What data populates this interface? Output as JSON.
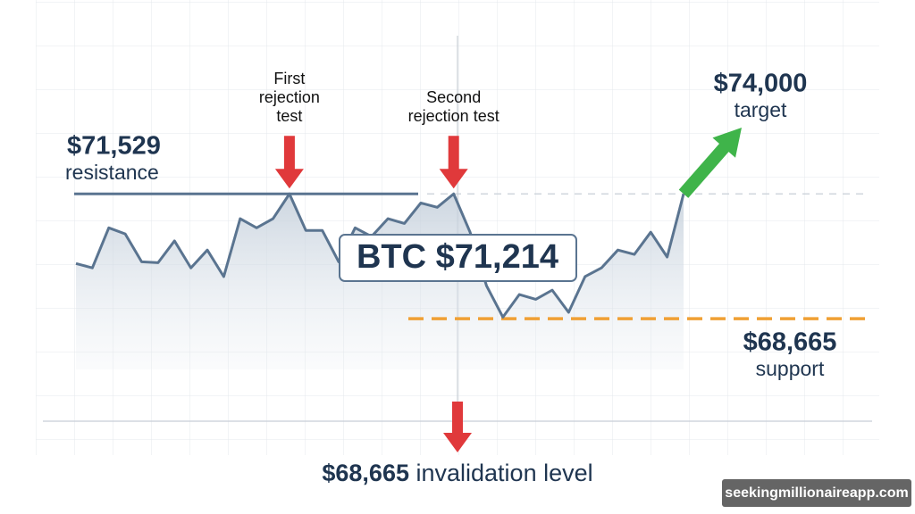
{
  "chart_data": {
    "type": "line",
    "values": [
      69930,
      69830,
      70750,
      70610,
      69970,
      69950,
      70450,
      69830,
      70240,
      69630,
      70960,
      70750,
      70960,
      71529,
      70690,
      70690,
      69970,
      70750,
      70550,
      70960,
      70850,
      71320,
      71220,
      71529,
      70650,
      69420,
      68700,
      69220,
      69110,
      69320,
      68810,
      69630,
      69830,
      70240,
      70140,
      70650,
      70080,
      71529
    ],
    "color": "#5a7490",
    "ylim": [
      67500,
      73500
    ],
    "resistance": {
      "value": 71529,
      "label": "$71,529",
      "text": "resistance"
    },
    "support": {
      "value": 68665,
      "label": "$68,665",
      "text": "support"
    },
    "target": {
      "value": 74000,
      "label": "$74,000",
      "text": "target"
    },
    "current_price": {
      "value": 71214,
      "label": "BTC $71,214"
    },
    "rejections": [
      {
        "index": 13,
        "text": [
          "First",
          "rejection",
          "test"
        ]
      },
      {
        "index": 23,
        "text": [
          "Second",
          "rejection test"
        ]
      }
    ],
    "invalidation": {
      "value": 68665,
      "label": "$68,665",
      "text": "invalidation level"
    },
    "watermark": "seekingmillionaireapp.com"
  }
}
